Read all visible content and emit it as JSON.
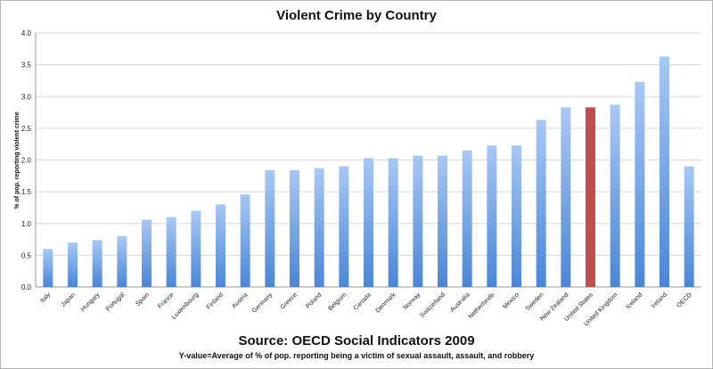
{
  "chart_data": {
    "type": "bar",
    "title": "Violent Crime by Country",
    "ylabel": "% of pop. reporting violent crime",
    "xlabel": "",
    "ylim": [
      0,
      4.0
    ],
    "yticks": [
      "0.0",
      "0.5",
      "1.0",
      "1.5",
      "2.0",
      "2.5",
      "3.0",
      "3.5",
      "4.0"
    ],
    "grid": true,
    "categories": [
      "Italy",
      "Japan",
      "Hungary",
      "Portugal",
      "Spain",
      "France",
      "Luxembourg",
      "Finland",
      "Austria",
      "Germany",
      "Greece",
      "Poland",
      "Belgium",
      "Canada",
      "Denmark",
      "Norway",
      "Switzerland",
      "Australia",
      "Netherlands",
      "Mexico",
      "Sweden",
      "New Zealand",
      "United States",
      "United Kingdom",
      "Iceland",
      "Ireland",
      "OECD"
    ],
    "values": [
      0.6,
      0.7,
      0.74,
      0.8,
      1.06,
      1.1,
      1.2,
      1.3,
      1.46,
      1.84,
      1.84,
      1.87,
      1.9,
      2.03,
      2.03,
      2.07,
      2.07,
      2.15,
      2.23,
      2.23,
      2.63,
      2.83,
      2.83,
      2.87,
      3.23,
      3.63,
      1.9
    ],
    "highlight_category": "United States",
    "colors": {
      "bar_top": "#a8c8f4",
      "bar_bottom": "#4a86d6",
      "highlight": "#c0504d",
      "grid": "#d6d6d6",
      "axis": "#999999"
    }
  },
  "source": "Source: OECD Social Indicators 2009",
  "footnote": "Y-value=Average of % of pop. reporting being a victim of sexual assault, assault, and robbery"
}
